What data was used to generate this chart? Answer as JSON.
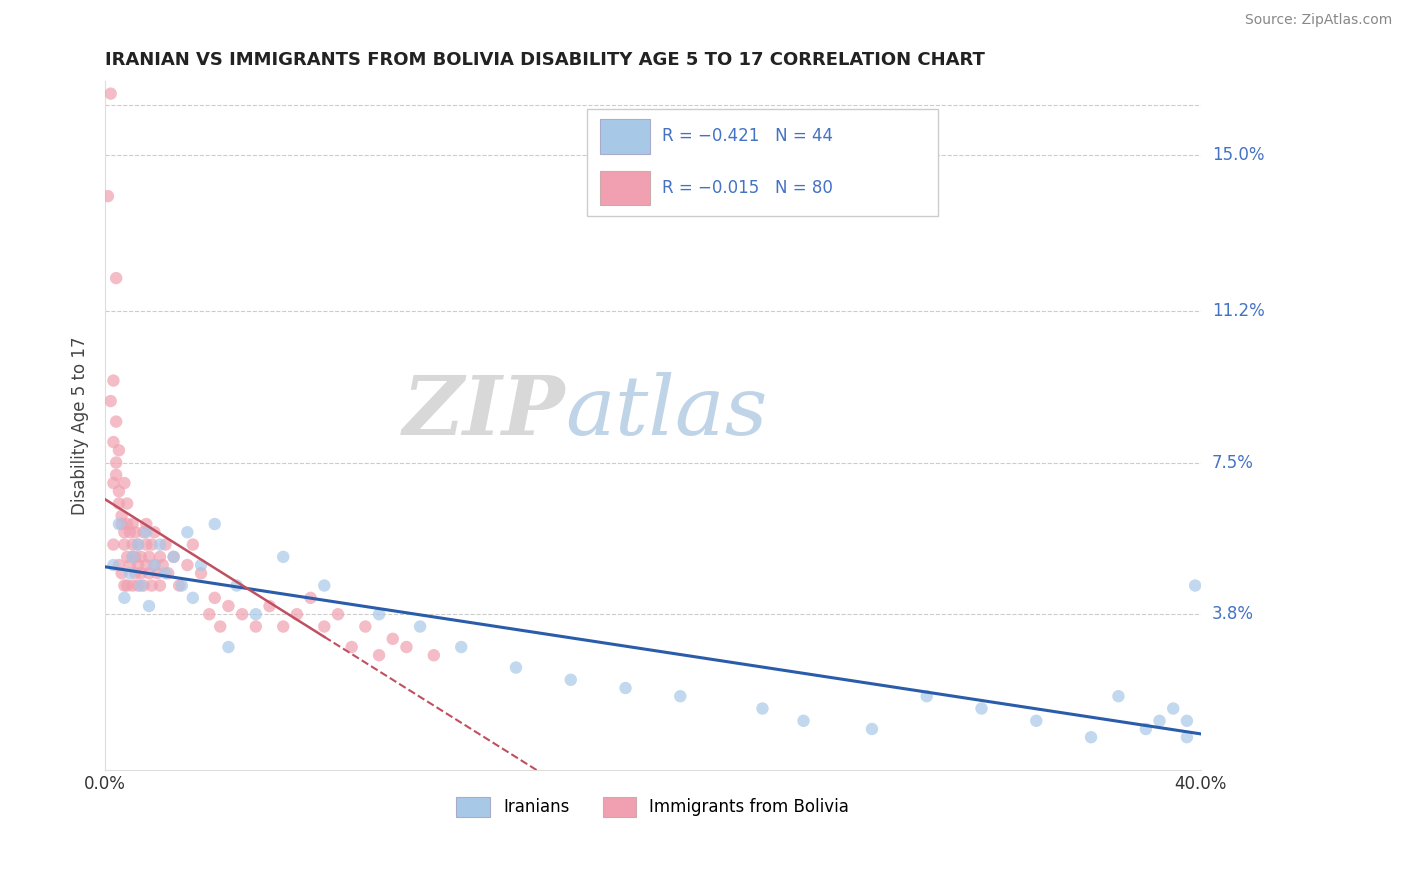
{
  "title": "IRANIAN VS IMMIGRANTS FROM BOLIVIA DISABILITY AGE 5 TO 17 CORRELATION CHART",
  "source": "Source: ZipAtlas.com",
  "ylabel": "Disability Age 5 to 17",
  "x_min": 0.0,
  "x_max": 0.4,
  "y_min": 0.0,
  "y_max": 0.168,
  "x_ticks": [
    0.0,
    0.4
  ],
  "x_tick_labels": [
    "0.0%",
    "40.0%"
  ],
  "y_tick_positions": [
    0.038,
    0.075,
    0.112,
    0.15
  ],
  "y_tick_labels": [
    "3.8%",
    "7.5%",
    "11.2%",
    "15.0%"
  ],
  "legend_label1": "R = −0.421   N = 44",
  "legend_label2": "R = −0.015   N = 80",
  "legend_label_iranians": "Iranians",
  "legend_label_bolivia": "Immigrants from Bolivia",
  "color_iranians": "#a8c8e8",
  "color_bolivia": "#f0a0b0",
  "color_trend_iranians": "#2a5caa",
  "color_trend_bolivia": "#c05060",
  "color_title": "#222222",
  "color_axis_labels": "#4472c4",
  "watermark_zip": "ZIP",
  "watermark_atlas": "atlas",
  "iranians_x": [
    0.003,
    0.005,
    0.007,
    0.009,
    0.01,
    0.012,
    0.013,
    0.015,
    0.016,
    0.018,
    0.02,
    0.022,
    0.025,
    0.028,
    0.03,
    0.032,
    0.035,
    0.04,
    0.045,
    0.048,
    0.055,
    0.065,
    0.08,
    0.1,
    0.115,
    0.13,
    0.15,
    0.17,
    0.19,
    0.21,
    0.24,
    0.255,
    0.28,
    0.3,
    0.32,
    0.34,
    0.36,
    0.37,
    0.38,
    0.385,
    0.39,
    0.395,
    0.395,
    0.398
  ],
  "iranians_y": [
    0.05,
    0.06,
    0.042,
    0.048,
    0.052,
    0.055,
    0.045,
    0.058,
    0.04,
    0.05,
    0.055,
    0.048,
    0.052,
    0.045,
    0.058,
    0.042,
    0.05,
    0.06,
    0.03,
    0.045,
    0.038,
    0.052,
    0.045,
    0.038,
    0.035,
    0.03,
    0.025,
    0.022,
    0.02,
    0.018,
    0.015,
    0.012,
    0.01,
    0.018,
    0.015,
    0.012,
    0.008,
    0.018,
    0.01,
    0.012,
    0.015,
    0.008,
    0.012,
    0.045
  ],
  "bolivia_x": [
    0.001,
    0.002,
    0.003,
    0.003,
    0.004,
    0.004,
    0.005,
    0.005,
    0.006,
    0.006,
    0.007,
    0.007,
    0.007,
    0.008,
    0.008,
    0.008,
    0.009,
    0.009,
    0.01,
    0.01,
    0.01,
    0.01,
    0.011,
    0.011,
    0.011,
    0.012,
    0.012,
    0.012,
    0.013,
    0.013,
    0.014,
    0.014,
    0.015,
    0.015,
    0.015,
    0.016,
    0.016,
    0.017,
    0.017,
    0.018,
    0.018,
    0.019,
    0.02,
    0.02,
    0.021,
    0.022,
    0.023,
    0.025,
    0.027,
    0.03,
    0.032,
    0.035,
    0.038,
    0.04,
    0.042,
    0.045,
    0.05,
    0.055,
    0.06,
    0.065,
    0.07,
    0.075,
    0.08,
    0.085,
    0.09,
    0.095,
    0.1,
    0.105,
    0.11,
    0.12,
    0.002,
    0.003,
    0.003,
    0.004,
    0.004,
    0.005,
    0.005,
    0.006,
    0.007,
    0.008
  ],
  "bolivia_y": [
    0.14,
    0.165,
    0.07,
    0.055,
    0.12,
    0.075,
    0.065,
    0.05,
    0.06,
    0.048,
    0.055,
    0.045,
    0.058,
    0.052,
    0.06,
    0.045,
    0.05,
    0.058,
    0.052,
    0.06,
    0.045,
    0.055,
    0.048,
    0.052,
    0.058,
    0.05,
    0.045,
    0.055,
    0.048,
    0.052,
    0.058,
    0.045,
    0.05,
    0.055,
    0.06,
    0.048,
    0.052,
    0.045,
    0.055,
    0.05,
    0.058,
    0.048,
    0.052,
    0.045,
    0.05,
    0.055,
    0.048,
    0.052,
    0.045,
    0.05,
    0.055,
    0.048,
    0.038,
    0.042,
    0.035,
    0.04,
    0.038,
    0.035,
    0.04,
    0.035,
    0.038,
    0.042,
    0.035,
    0.038,
    0.03,
    0.035,
    0.028,
    0.032,
    0.03,
    0.028,
    0.09,
    0.08,
    0.095,
    0.072,
    0.085,
    0.068,
    0.078,
    0.062,
    0.07,
    0.065
  ]
}
